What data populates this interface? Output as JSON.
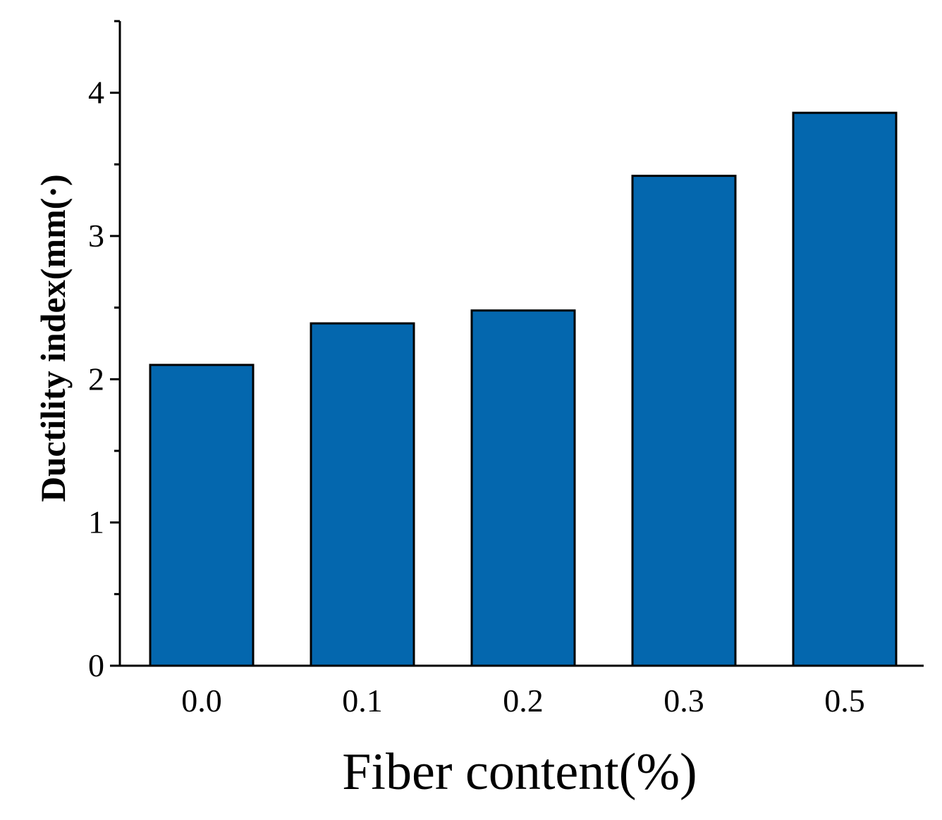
{
  "chart_data": {
    "type": "bar",
    "title": "",
    "xlabel": "Fiber content(%)",
    "ylabel": "Ductility index(mm(·)",
    "categories": [
      "0.0",
      "0.1",
      "0.2",
      "0.3",
      "0.5"
    ],
    "values": [
      2.1,
      2.39,
      2.48,
      3.42,
      3.86
    ],
    "ylim": [
      0,
      4.5
    ],
    "yticks_major": [
      0,
      1,
      2,
      3,
      4
    ],
    "yticks_major_labels": [
      "0",
      "1",
      "2",
      "3",
      "4"
    ],
    "yticks_minor": [
      0.5,
      1.5,
      2.5,
      3.5,
      4.5
    ],
    "grid": false,
    "legend": "none",
    "colors": {
      "bar_fill": "#0467AE",
      "bar_stroke": "#000000",
      "axis": "#000000"
    }
  }
}
